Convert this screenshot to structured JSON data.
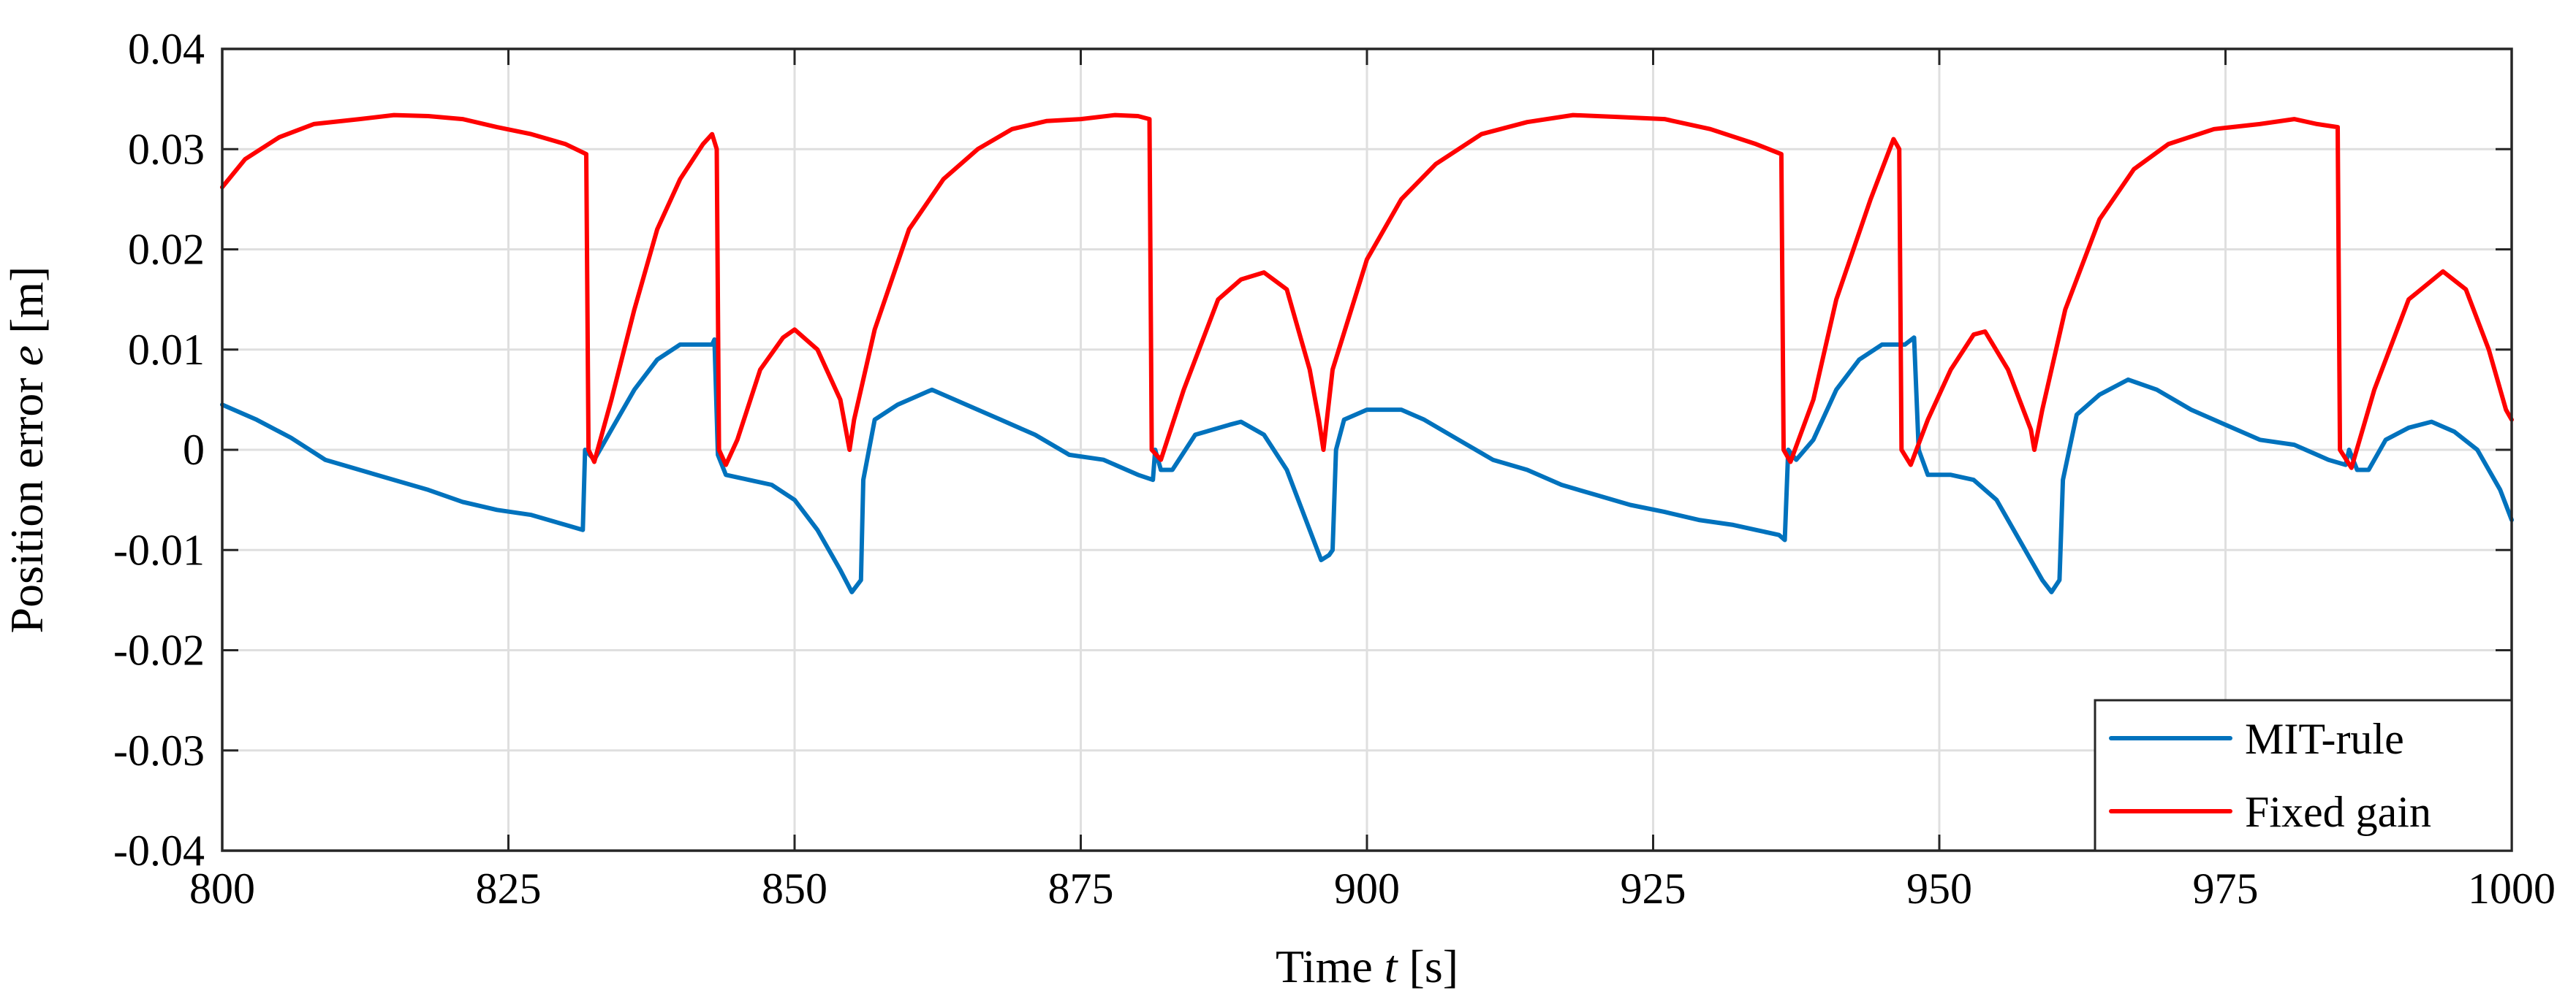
{
  "chart_data": {
    "type": "line",
    "title": "",
    "xlabel": "Time",
    "xlabel_var": "t",
    "xlabel_unit": "[s]",
    "ylabel": "Position error",
    "ylabel_var": "e",
    "ylabel_unit": "[m]",
    "xlim": [
      800,
      1000
    ],
    "ylim": [
      -0.04,
      0.04
    ],
    "xticks": [
      800,
      825,
      850,
      875,
      900,
      925,
      950,
      975,
      1000
    ],
    "xtick_labels": [
      "800",
      "825",
      "850",
      "875",
      "900",
      "925",
      "950",
      "975",
      "1000"
    ],
    "yticks": [
      -0.04,
      -0.03,
      -0.02,
      -0.01,
      0,
      0.01,
      0.02,
      0.03,
      0.04
    ],
    "ytick_labels": [
      "-0.04",
      "-0.03",
      "-0.02",
      "-0.01",
      "0",
      "0.01",
      "0.02",
      "0.03",
      "0.04"
    ],
    "grid": true,
    "legend_position": "bottom-right",
    "series": [
      {
        "name": "MIT-rule",
        "color": "#0072BD",
        "points": [
          [
            800,
            0.0045
          ],
          [
            803,
            0.003
          ],
          [
            806,
            0.0012
          ],
          [
            809,
            -0.001
          ],
          [
            812,
            -0.002
          ],
          [
            815,
            -0.003
          ],
          [
            818,
            -0.004
          ],
          [
            821,
            -0.0052
          ],
          [
            824,
            -0.006
          ],
          [
            827,
            -0.0065
          ],
          [
            830,
            -0.0075
          ],
          [
            831.5,
            -0.008
          ],
          [
            831.7,
            0.0
          ],
          [
            832.5,
            -0.001
          ],
          [
            834,
            0.002
          ],
          [
            836,
            0.006
          ],
          [
            838,
            0.009
          ],
          [
            840,
            0.0105
          ],
          [
            842,
            0.0105
          ],
          [
            842.8,
            0.0105
          ],
          [
            843,
            0.011
          ],
          [
            843.3,
            -0.0005
          ],
          [
            844,
            -0.0025
          ],
          [
            846,
            -0.003
          ],
          [
            848,
            -0.0035
          ],
          [
            850,
            -0.005
          ],
          [
            852,
            -0.008
          ],
          [
            854,
            -0.012
          ],
          [
            855,
            -0.0142
          ],
          [
            855.8,
            -0.013
          ],
          [
            856,
            -0.003
          ],
          [
            857,
            0.003
          ],
          [
            859,
            0.0045
          ],
          [
            862,
            0.006
          ],
          [
            865,
            0.0045
          ],
          [
            868,
            0.003
          ],
          [
            871,
            0.0015
          ],
          [
            874,
            -0.0005
          ],
          [
            877,
            -0.001
          ],
          [
            880,
            -0.0025
          ],
          [
            881.3,
            -0.003
          ],
          [
            881.5,
            0.0
          ],
          [
            882,
            -0.002
          ],
          [
            883,
            -0.002
          ],
          [
            885,
            0.0015
          ],
          [
            888,
            0.0025
          ],
          [
            889,
            0.0028
          ],
          [
            891,
            0.0015
          ],
          [
            893,
            -0.002
          ],
          [
            895,
            -0.008
          ],
          [
            896,
            -0.011
          ],
          [
            896.7,
            -0.0105
          ],
          [
            897,
            -0.01
          ],
          [
            897.3,
            0.0
          ],
          [
            898,
            0.003
          ],
          [
            900,
            0.004
          ],
          [
            903,
            0.004
          ],
          [
            905,
            0.003
          ],
          [
            908,
            0.001
          ],
          [
            911,
            -0.001
          ],
          [
            914,
            -0.002
          ],
          [
            917,
            -0.0035
          ],
          [
            920,
            -0.0045
          ],
          [
            923,
            -0.0055
          ],
          [
            926,
            -0.0062
          ],
          [
            929,
            -0.007
          ],
          [
            932,
            -0.0075
          ],
          [
            934,
            -0.008
          ],
          [
            936,
            -0.0085
          ],
          [
            936.5,
            -0.009
          ],
          [
            936.8,
            0.0
          ],
          [
            937.5,
            -0.001
          ],
          [
            939,
            0.001
          ],
          [
            941,
            0.006
          ],
          [
            943,
            0.009
          ],
          [
            945,
            0.0105
          ],
          [
            947,
            0.0105
          ],
          [
            947.8,
            0.0112
          ],
          [
            948.2,
            0.0
          ],
          [
            949,
            -0.0025
          ],
          [
            951,
            -0.0025
          ],
          [
            953,
            -0.003
          ],
          [
            955,
            -0.005
          ],
          [
            957,
            -0.009
          ],
          [
            959,
            -0.013
          ],
          [
            959.8,
            -0.0142
          ],
          [
            960.5,
            -0.013
          ],
          [
            960.8,
            -0.003
          ],
          [
            962,
            0.0035
          ],
          [
            964,
            0.0055
          ],
          [
            966.5,
            0.007
          ],
          [
            969,
            0.006
          ],
          [
            972,
            0.004
          ],
          [
            975,
            0.0025
          ],
          [
            978,
            0.001
          ],
          [
            981,
            0.0005
          ],
          [
            984,
            -0.001
          ],
          [
            985.5,
            -0.0015
          ],
          [
            985.8,
            0.0
          ],
          [
            986.5,
            -0.002
          ],
          [
            987.5,
            -0.002
          ],
          [
            989,
            0.001
          ],
          [
            991,
            0.0022
          ],
          [
            993,
            0.0028
          ],
          [
            995,
            0.0018
          ],
          [
            997,
            0.0
          ],
          [
            999,
            -0.004
          ],
          [
            1000,
            -0.007
          ]
        ]
      },
      {
        "name": "Fixed gain",
        "color": "#FF0000",
        "points": [
          [
            800,
            0.0262
          ],
          [
            802,
            0.029
          ],
          [
            805,
            0.0312
          ],
          [
            808,
            0.0325
          ],
          [
            812,
            0.033
          ],
          [
            815,
            0.0334
          ],
          [
            818,
            0.0333
          ],
          [
            821,
            0.033
          ],
          [
            824,
            0.0322
          ],
          [
            827,
            0.0315
          ],
          [
            830,
            0.0305
          ],
          [
            831.8,
            0.0295
          ],
          [
            832,
            0.0
          ],
          [
            832.5,
            -0.0012
          ],
          [
            834,
            0.005
          ],
          [
            836,
            0.014
          ],
          [
            838,
            0.022
          ],
          [
            840,
            0.027
          ],
          [
            842,
            0.0305
          ],
          [
            842.8,
            0.0315
          ],
          [
            843.2,
            0.03
          ],
          [
            843.4,
            0.0
          ],
          [
            844,
            -0.0015
          ],
          [
            845,
            0.001
          ],
          [
            847,
            0.008
          ],
          [
            849,
            0.0112
          ],
          [
            850,
            0.012
          ],
          [
            852,
            0.01
          ],
          [
            854,
            0.005
          ],
          [
            854.8,
            0.0
          ],
          [
            855.2,
            0.003
          ],
          [
            857,
            0.012
          ],
          [
            860,
            0.022
          ],
          [
            863,
            0.027
          ],
          [
            866,
            0.03
          ],
          [
            869,
            0.032
          ],
          [
            872,
            0.0328
          ],
          [
            875,
            0.033
          ],
          [
            878,
            0.0334
          ],
          [
            880,
            0.0333
          ],
          [
            881,
            0.033
          ],
          [
            881.2,
            0.0
          ],
          [
            882,
            -0.001
          ],
          [
            884,
            0.006
          ],
          [
            887,
            0.015
          ],
          [
            889,
            0.017
          ],
          [
            891,
            0.0177
          ],
          [
            893,
            0.016
          ],
          [
            895,
            0.008
          ],
          [
            895.8,
            0.003
          ],
          [
            896.2,
            0.0
          ],
          [
            897,
            0.008
          ],
          [
            900,
            0.019
          ],
          [
            903,
            0.025
          ],
          [
            906,
            0.0285
          ],
          [
            910,
            0.0315
          ],
          [
            914,
            0.0327
          ],
          [
            918,
            0.0334
          ],
          [
            922,
            0.0332
          ],
          [
            926,
            0.033
          ],
          [
            930,
            0.032
          ],
          [
            934,
            0.0305
          ],
          [
            936.2,
            0.0295
          ],
          [
            936.4,
            0.0
          ],
          [
            937,
            -0.0012
          ],
          [
            939,
            0.005
          ],
          [
            941,
            0.015
          ],
          [
            944,
            0.025
          ],
          [
            946,
            0.031
          ],
          [
            946.5,
            0.03
          ],
          [
            946.7,
            0.0
          ],
          [
            947.5,
            -0.0015
          ],
          [
            949,
            0.003
          ],
          [
            951,
            0.008
          ],
          [
            953,
            0.0115
          ],
          [
            954,
            0.0118
          ],
          [
            956,
            0.008
          ],
          [
            958,
            0.002
          ],
          [
            958.3,
            0.0
          ],
          [
            959,
            0.004
          ],
          [
            961,
            0.014
          ],
          [
            964,
            0.023
          ],
          [
            967,
            0.028
          ],
          [
            970,
            0.0305
          ],
          [
            974,
            0.032
          ],
          [
            978,
            0.0325
          ],
          [
            981,
            0.033
          ],
          [
            983,
            0.0325
          ],
          [
            984.8,
            0.0322
          ],
          [
            985,
            0.0
          ],
          [
            986,
            -0.0018
          ],
          [
            988,
            0.006
          ],
          [
            991,
            0.015
          ],
          [
            994,
            0.0178
          ],
          [
            996,
            0.016
          ],
          [
            998,
            0.01
          ],
          [
            999.5,
            0.004
          ],
          [
            1000,
            0.003
          ]
        ]
      }
    ]
  }
}
